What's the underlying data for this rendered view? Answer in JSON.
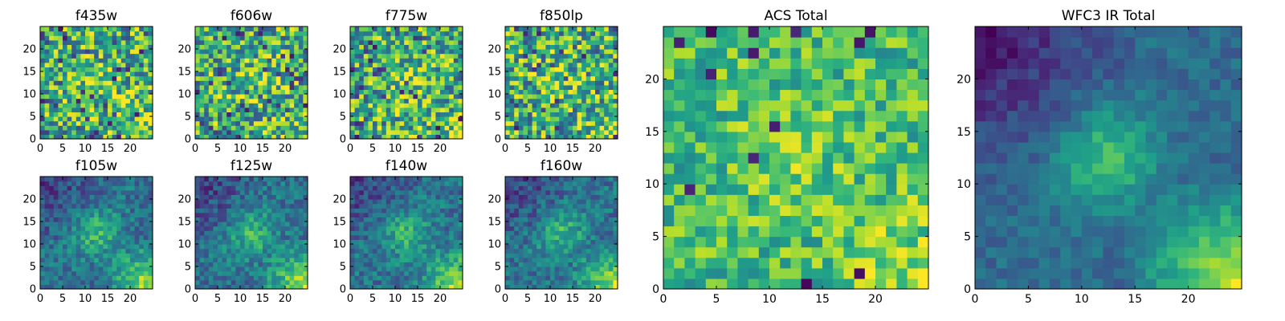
{
  "figure": {
    "panel_order": [
      "f435w",
      "f606w",
      "f775w",
      "f850lp",
      "f105w",
      "f125w",
      "f140w",
      "f160w",
      "ACS Total",
      "WFC3 IR Total"
    ]
  },
  "chart_data": [
    {
      "type": "heatmap",
      "title": "f435w",
      "xlim": [
        0,
        25
      ],
      "ylim": [
        0,
        25
      ],
      "xticks": [
        0,
        5,
        10,
        15,
        20
      ],
      "yticks": [
        0,
        5,
        10,
        15,
        20
      ],
      "grid": false,
      "colormap": "viridis",
      "pattern": "noise",
      "seed": 11
    },
    {
      "type": "heatmap",
      "title": "f606w",
      "xlim": [
        0,
        25
      ],
      "ylim": [
        0,
        25
      ],
      "xticks": [
        0,
        5,
        10,
        15,
        20
      ],
      "yticks": [
        0,
        5,
        10,
        15,
        20
      ],
      "grid": false,
      "colormap": "viridis",
      "pattern": "noise",
      "seed": 23
    },
    {
      "type": "heatmap",
      "title": "f775w",
      "xlim": [
        0,
        25
      ],
      "ylim": [
        0,
        25
      ],
      "xticks": [
        0,
        5,
        10,
        15,
        20
      ],
      "yticks": [
        0,
        5,
        10,
        15,
        20
      ],
      "grid": false,
      "colormap": "viridis",
      "pattern": "noise",
      "seed": 37
    },
    {
      "type": "heatmap",
      "title": "f850lp",
      "xlim": [
        0,
        25
      ],
      "ylim": [
        0,
        25
      ],
      "xticks": [
        0,
        5,
        10,
        15,
        20
      ],
      "yticks": [
        0,
        5,
        10,
        15,
        20
      ],
      "grid": false,
      "colormap": "viridis",
      "pattern": "noise",
      "seed": 41
    },
    {
      "type": "heatmap",
      "title": "f105w",
      "xlim": [
        0,
        25
      ],
      "ylim": [
        0,
        25
      ],
      "xticks": [
        0,
        5,
        10,
        15,
        20
      ],
      "yticks": [
        0,
        5,
        10,
        15,
        20
      ],
      "grid": false,
      "colormap": "viridis",
      "pattern": "ir",
      "seed": 53
    },
    {
      "type": "heatmap",
      "title": "f125w",
      "xlim": [
        0,
        25
      ],
      "ylim": [
        0,
        25
      ],
      "xticks": [
        0,
        5,
        10,
        15,
        20
      ],
      "yticks": [
        0,
        5,
        10,
        15,
        20
      ],
      "grid": false,
      "colormap": "viridis",
      "pattern": "ir",
      "seed": 67
    },
    {
      "type": "heatmap",
      "title": "f140w",
      "xlim": [
        0,
        25
      ],
      "ylim": [
        0,
        25
      ],
      "xticks": [
        0,
        5,
        10,
        15,
        20
      ],
      "yticks": [
        0,
        5,
        10,
        15,
        20
      ],
      "grid": false,
      "colormap": "viridis",
      "pattern": "ir",
      "seed": 71
    },
    {
      "type": "heatmap",
      "title": "f160w",
      "xlim": [
        0,
        25
      ],
      "ylim": [
        0,
        25
      ],
      "xticks": [
        0,
        5,
        10,
        15,
        20
      ],
      "yticks": [
        0,
        5,
        10,
        15,
        20
      ],
      "grid": false,
      "colormap": "viridis",
      "pattern": "ir",
      "seed": 83
    },
    {
      "type": "heatmap",
      "title": "ACS Total",
      "xlim": [
        0,
        25
      ],
      "ylim": [
        0,
        25
      ],
      "xticks": [
        0,
        5,
        10,
        15,
        20
      ],
      "yticks": [
        0,
        5,
        10,
        15,
        20
      ],
      "grid": false,
      "colormap": "viridis",
      "pattern": "acs_total",
      "seed": 97
    },
    {
      "type": "heatmap",
      "title": "WFC3 IR Total",
      "xlim": [
        0,
        25
      ],
      "ylim": [
        0,
        25
      ],
      "xticks": [
        0,
        5,
        10,
        15,
        20
      ],
      "yticks": [
        0,
        5,
        10,
        15,
        20
      ],
      "grid": false,
      "colormap": "viridis",
      "pattern": "ir_total",
      "seed": 101
    }
  ]
}
